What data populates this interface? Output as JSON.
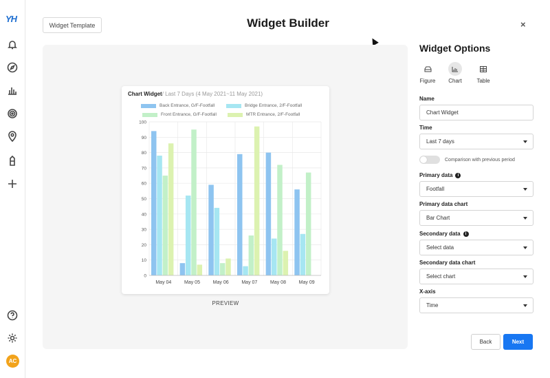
{
  "app": {
    "logo_text": "YH",
    "title": "Widget Builder",
    "template_button": "Widget Template",
    "close_label": "×",
    "avatar_initials": "AC",
    "avatar_color": "#f2a31b"
  },
  "sidebar": {
    "icons": [
      "bell-icon",
      "compass-icon",
      "bar-chart-icon",
      "fingerprint-icon",
      "location-pin-icon",
      "tower-icon",
      "plus-icon",
      "help-icon",
      "settings-icon"
    ]
  },
  "preview": {
    "label": "PREVIEW",
    "widget_title": "Chart Widget",
    "widget_subtitle": "/ Last 7 Days (4 May 2021~11 May 2021)"
  },
  "chart_data": {
    "type": "bar",
    "categories": [
      "May 04",
      "May 05",
      "May 06",
      "May 07",
      "May 08",
      "May 09"
    ],
    "ylim": [
      0,
      100
    ],
    "yticks": [
      0,
      10,
      20,
      30,
      40,
      50,
      60,
      70,
      80,
      90,
      100
    ],
    "series": [
      {
        "name": "Back Entrance, G/F-Footfall",
        "color": "#8ec4f0",
        "values": [
          94,
          8,
          59,
          79,
          80,
          56
        ]
      },
      {
        "name": "Bridge Entrance, 2/F-Footfall",
        "color": "#a6e6f2",
        "values": [
          78,
          52,
          44,
          6,
          24,
          27
        ]
      },
      {
        "name": "Front Entrance, G/F-Footfall",
        "color": "#c2f0c8",
        "values": [
          65,
          95,
          8,
          26,
          72,
          67
        ]
      },
      {
        "name": "MTR Entrance, 2/F-Footfall",
        "color": "#dcf2b0",
        "values": [
          86,
          7,
          11,
          97,
          16,
          0
        ]
      }
    ],
    "grid": true,
    "legend_position": "top"
  },
  "options": {
    "title": "Widget Options",
    "types": [
      {
        "label": "Figure",
        "icon": "figure-icon",
        "selected": false
      },
      {
        "label": "Chart",
        "icon": "chart-icon",
        "selected": true
      },
      {
        "label": "Table",
        "icon": "table-icon",
        "selected": false
      }
    ],
    "name_label": "Name",
    "name_value": "Chart Widget",
    "time_label": "Time",
    "time_value": "Last 7 days",
    "comparison_label": "Comparison with previous period",
    "comparison_enabled": false,
    "primary_data_label": "Primary data",
    "primary_data_value": "Footfall",
    "primary_chart_label": "Primary data chart",
    "primary_chart_value": "Bar Chart",
    "secondary_data_label": "Secondary data",
    "secondary_data_value": "Select data",
    "secondary_chart_label": "Secondary data chart",
    "secondary_chart_value": "Select chart",
    "xaxis_label": "X-axis",
    "xaxis_value": "Time",
    "back_button": "Back",
    "next_button": "Next",
    "accent_color": "#1877f2"
  }
}
